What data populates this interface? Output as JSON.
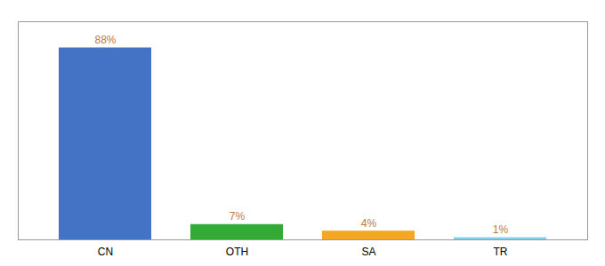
{
  "chart_data": {
    "type": "bar",
    "categories": [
      "CN",
      "OTH",
      "SA",
      "TR"
    ],
    "values": [
      88,
      7,
      4,
      1
    ],
    "value_labels": [
      "88%",
      "7%",
      "4%",
      "1%"
    ],
    "colors": [
      "#4472C4",
      "#33AA33",
      "#F5A623",
      "#87CEEB"
    ],
    "ylim": [
      0,
      100
    ],
    "data_labels": true,
    "tick_labels": "x"
  }
}
